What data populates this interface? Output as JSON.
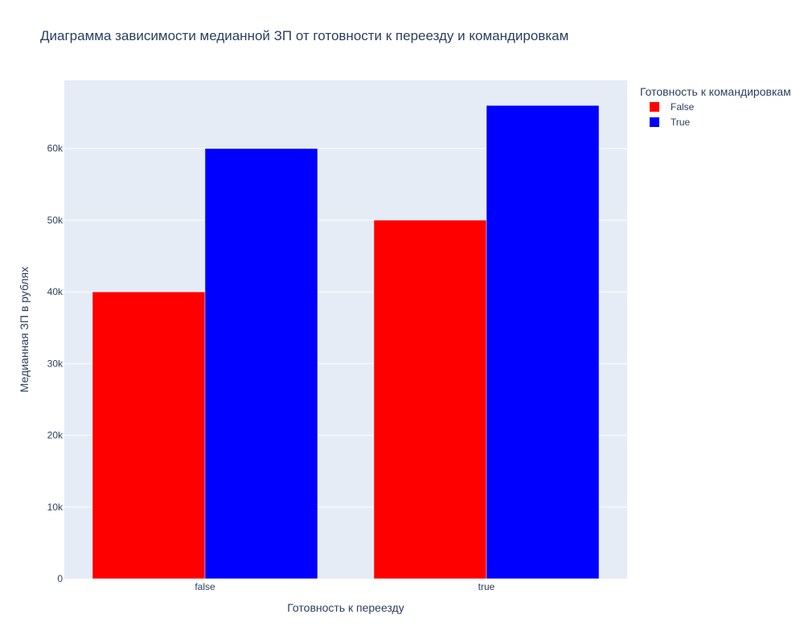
{
  "chart_data": {
    "type": "bar",
    "title": "Диаграмма зависимости медианной ЗП от готовности к переезду и командировкам",
    "xlabel": "Готовность к переезду",
    "ylabel": "Медианная ЗП в рублях",
    "categories": [
      "false",
      "true"
    ],
    "series": [
      {
        "name": "False",
        "color": "#ff0000",
        "values": [
          40000,
          50000
        ]
      },
      {
        "name": "True",
        "color": "#0000ff",
        "values": [
          60000,
          66000
        ]
      }
    ],
    "ylim": [
      0,
      69500
    ],
    "yticks": [
      0,
      10000,
      20000,
      30000,
      40000,
      50000,
      60000
    ],
    "ytick_labels": [
      "0",
      "10k",
      "20k",
      "30k",
      "40k",
      "50k",
      "60k"
    ],
    "legend_title": "Готовность к командировкам",
    "legend_position": "top-right",
    "grid": true,
    "plot_background": "#e5ecf6"
  }
}
